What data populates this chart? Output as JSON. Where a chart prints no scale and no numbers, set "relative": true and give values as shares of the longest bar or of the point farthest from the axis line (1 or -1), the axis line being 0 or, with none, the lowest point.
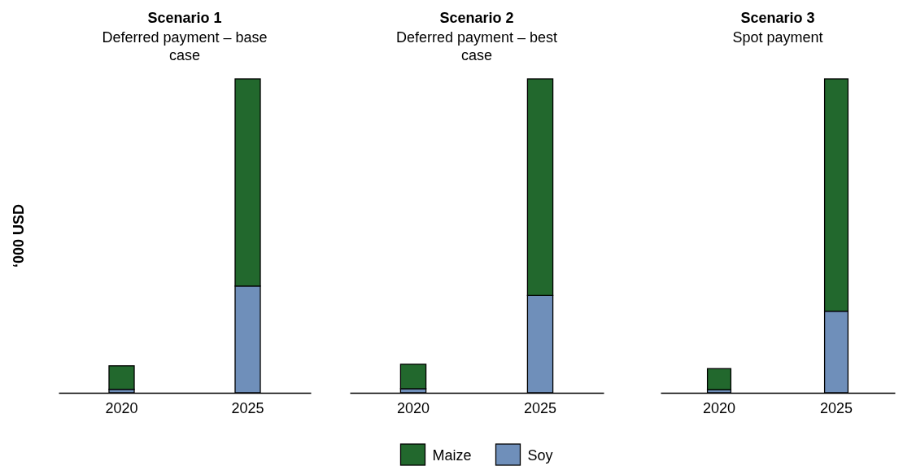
{
  "chart_data": [
    {
      "type": "bar",
      "title": "Scenario 1",
      "subtitle": "Deferred payment – base case",
      "ylabel": "‘000 USD",
      "categories": [
        "2020",
        "2025"
      ],
      "stacked": true,
      "relative": true,
      "legend": false,
      "series": [
        {
          "color": "#6f8fba",
          "values": [
            0.011,
            0.34
          ]
        },
        {
          "color": "#22682d",
          "values": [
            0.075,
            0.66
          ]
        }
      ]
    },
    {
      "type": "bar",
      "title": "Scenario 2",
      "subtitle": "Deferred payment – best case",
      "categories": [
        "2020",
        "2025"
      ],
      "stacked": true,
      "relative": true,
      "legend": "bottom",
      "series": [
        {
          "name": "Soy",
          "color": "#6f8fba",
          "values": [
            0.013,
            0.31
          ]
        },
        {
          "name": "Maize",
          "color": "#22682d",
          "values": [
            0.078,
            0.69
          ]
        }
      ]
    },
    {
      "type": "bar",
      "title": "Scenario 3",
      "subtitle": "Spot payment",
      "categories": [
        "2020",
        "2025"
      ],
      "stacked": true,
      "relative": true,
      "legend": false,
      "series": [
        {
          "color": "#6f8fba",
          "values": [
            0.01,
            0.26
          ]
        },
        {
          "color": "#22682d",
          "values": [
            0.067,
            0.74
          ]
        }
      ]
    }
  ]
}
